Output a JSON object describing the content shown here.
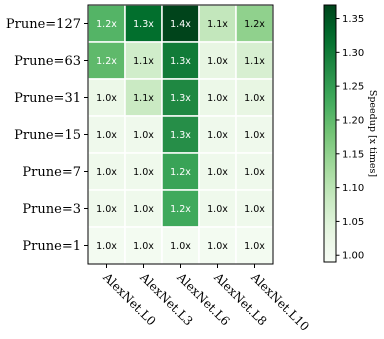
{
  "chart_data": {
    "type": "heatmap",
    "rows": [
      "Prune=127",
      "Prune=63",
      "Prune=31",
      "Prune=15",
      "Prune=7",
      "Prune=3",
      "Prune=1"
    ],
    "columns": [
      "AlexNet.L0",
      "AlexNet.L3",
      "AlexNet.L6",
      "AlexNet.L8",
      "AlexNet.L10"
    ],
    "values": [
      [
        1.21,
        1.32,
        1.37,
        1.09,
        1.15
      ],
      [
        1.2,
        1.07,
        1.3,
        1.03,
        1.06
      ],
      [
        1.02,
        1.08,
        1.28,
        1.02,
        1.03
      ],
      [
        1.01,
        1.01,
        1.27,
        1.01,
        1.01
      ],
      [
        1.01,
        1.01,
        1.24,
        1.01,
        1.01
      ],
      [
        1.01,
        1.01,
        1.23,
        1.01,
        1.01
      ],
      [
        1.0,
        1.0,
        1.0,
        1.0,
        1.0
      ]
    ],
    "labels": [
      [
        "1.2x",
        "1.3x",
        "1.4x",
        "1.1x",
        "1.2x"
      ],
      [
        "1.2x",
        "1.1x",
        "1.3x",
        "1.0x",
        "1.1x"
      ],
      [
        "1.0x",
        "1.1x",
        "1.3x",
        "1.0x",
        "1.0x"
      ],
      [
        "1.0x",
        "1.0x",
        "1.3x",
        "1.0x",
        "1.0x"
      ],
      [
        "1.0x",
        "1.0x",
        "1.2x",
        "1.0x",
        "1.0x"
      ],
      [
        "1.0x",
        "1.0x",
        "1.2x",
        "1.0x",
        "1.0x"
      ],
      [
        "1.0x",
        "1.0x",
        "1.0x",
        "1.0x",
        "1.0x"
      ]
    ],
    "colormap": "Greens",
    "colorbar": {
      "label": "Speedup [x times]",
      "range": [
        0.99,
        1.37
      ],
      "ticks": [
        1.0,
        1.05,
        1.1,
        1.15,
        1.2,
        1.25,
        1.3,
        1.35
      ],
      "tick_labels": [
        "1.00",
        "1.05",
        "1.10",
        "1.15",
        "1.20",
        "1.25",
        "1.30",
        "1.35"
      ]
    }
  }
}
